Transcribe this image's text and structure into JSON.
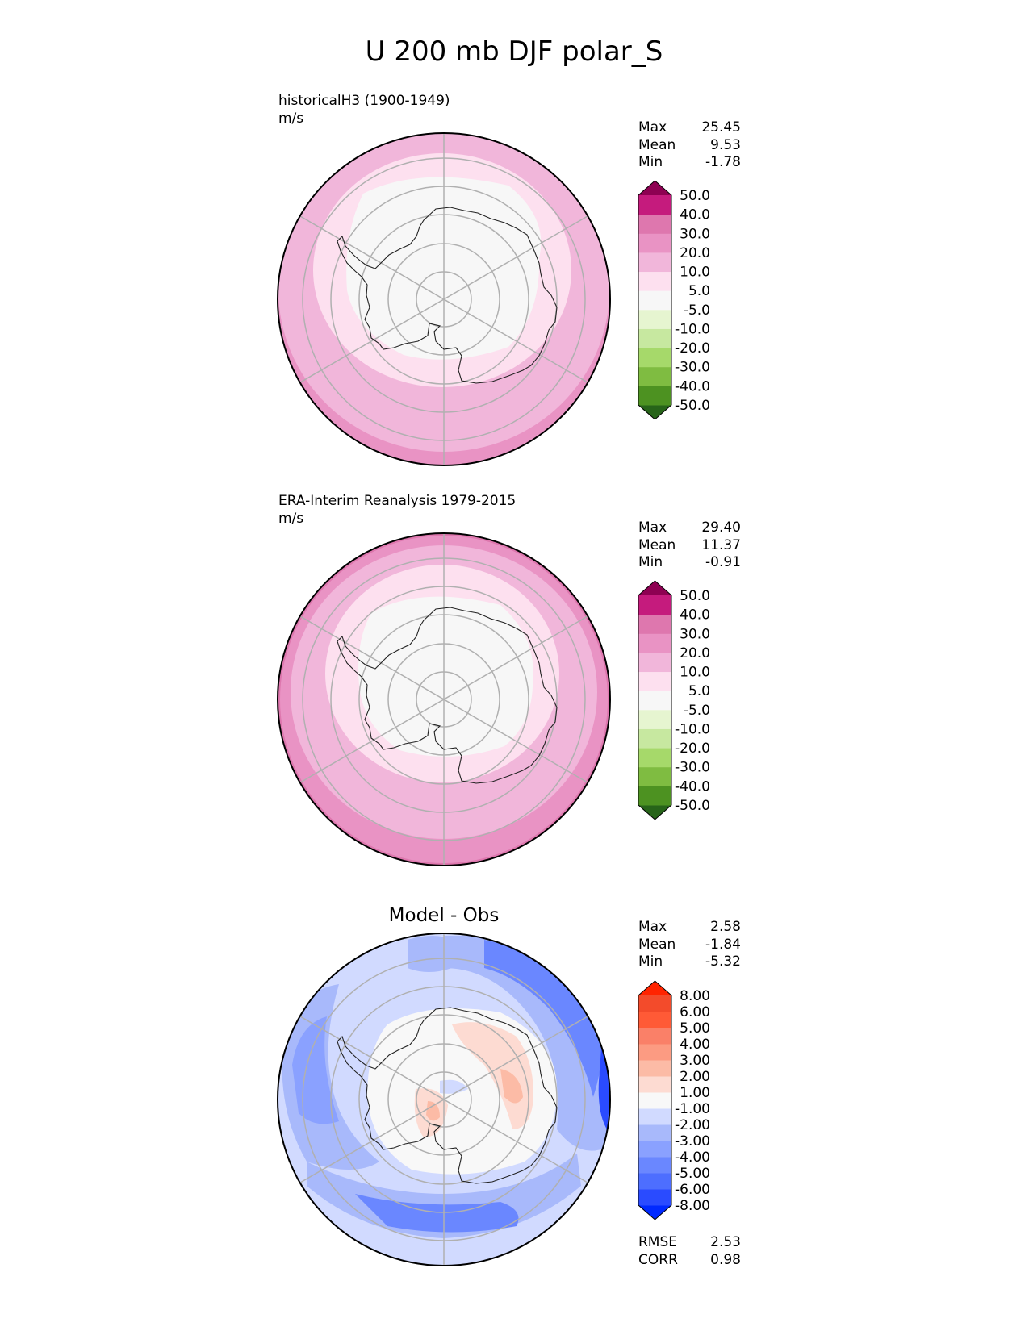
{
  "figure": {
    "title": "U 200 mb DJF polar_S"
  },
  "chart_data": [
    {
      "type": "heatmap",
      "panel": "test",
      "title": "historicalH3 (1900-1949)",
      "units": "m/s",
      "stats": [
        {
          "label": "Max",
          "value": "25.45"
        },
        {
          "label": "Mean",
          "value": "9.53"
        },
        {
          "label": "Min",
          "value": "-1.78"
        }
      ],
      "colorbar": {
        "levels": [
          "-50.0",
          "-40.0",
          "-30.0",
          "-20.0",
          "-10.0",
          "-5.0",
          "5.0",
          "10.0",
          "20.0",
          "30.0",
          "40.0",
          "50.0"
        ],
        "colors": [
          "#276419",
          "#4d9221",
          "#7fbc41",
          "#a6d96a",
          "#c7e8a0",
          "#e6f5d0",
          "#f7f7f7",
          "#fde0ef",
          "#f1b6da",
          "#e993c4",
          "#de77ae",
          "#c51b7d",
          "#8e0152"
        ]
      },
      "zonal_band_values": [
        22,
        16,
        12,
        7,
        3,
        1
      ]
    },
    {
      "type": "heatmap",
      "panel": "reference",
      "title": "ERA-Interim Reanalysis 1979-2015",
      "units": "m/s",
      "stats": [
        {
          "label": "Max",
          "value": "29.40"
        },
        {
          "label": "Mean",
          "value": "11.37"
        },
        {
          "label": "Min",
          "value": "-0.91"
        }
      ],
      "colorbar": {
        "levels": [
          "-50.0",
          "-40.0",
          "-30.0",
          "-20.0",
          "-10.0",
          "-5.0",
          "5.0",
          "10.0",
          "20.0",
          "30.0",
          "40.0",
          "50.0"
        ],
        "colors": [
          "#276419",
          "#4d9221",
          "#7fbc41",
          "#a6d96a",
          "#c7e8a0",
          "#e6f5d0",
          "#f7f7f7",
          "#fde0ef",
          "#f1b6da",
          "#e993c4",
          "#de77ae",
          "#c51b7d",
          "#8e0152"
        ]
      },
      "zonal_band_values": [
        25,
        22,
        16,
        12,
        7,
        1
      ]
    },
    {
      "type": "heatmap",
      "panel": "difference",
      "title": "Model - Obs",
      "stats": [
        {
          "label": "Max",
          "value": "2.58"
        },
        {
          "label": "Mean",
          "value": "-1.84"
        },
        {
          "label": "Min",
          "value": "-5.32"
        }
      ],
      "colorbar": {
        "levels": [
          "-8.00",
          "-6.00",
          "-5.00",
          "-4.00",
          "-3.00",
          "-2.00",
          "-1.00",
          "1.00",
          "2.00",
          "3.00",
          "4.00",
          "5.00",
          "6.00",
          "8.00"
        ],
        "colors": [
          "#0029ff",
          "#2a4bff",
          "#4d6eff",
          "#6a87ff",
          "#8aa1ff",
          "#a8b9fb",
          "#d1daff",
          "#f8f8f8",
          "#fddbd2",
          "#fcbba6",
          "#fc9b82",
          "#fa8068",
          "#ff5a36",
          "#f34b2b",
          "#ff2400"
        ]
      },
      "metrics": [
        {
          "label": "RMSE",
          "value": "2.53"
        },
        {
          "label": "CORR",
          "value": "0.98"
        }
      ]
    }
  ]
}
